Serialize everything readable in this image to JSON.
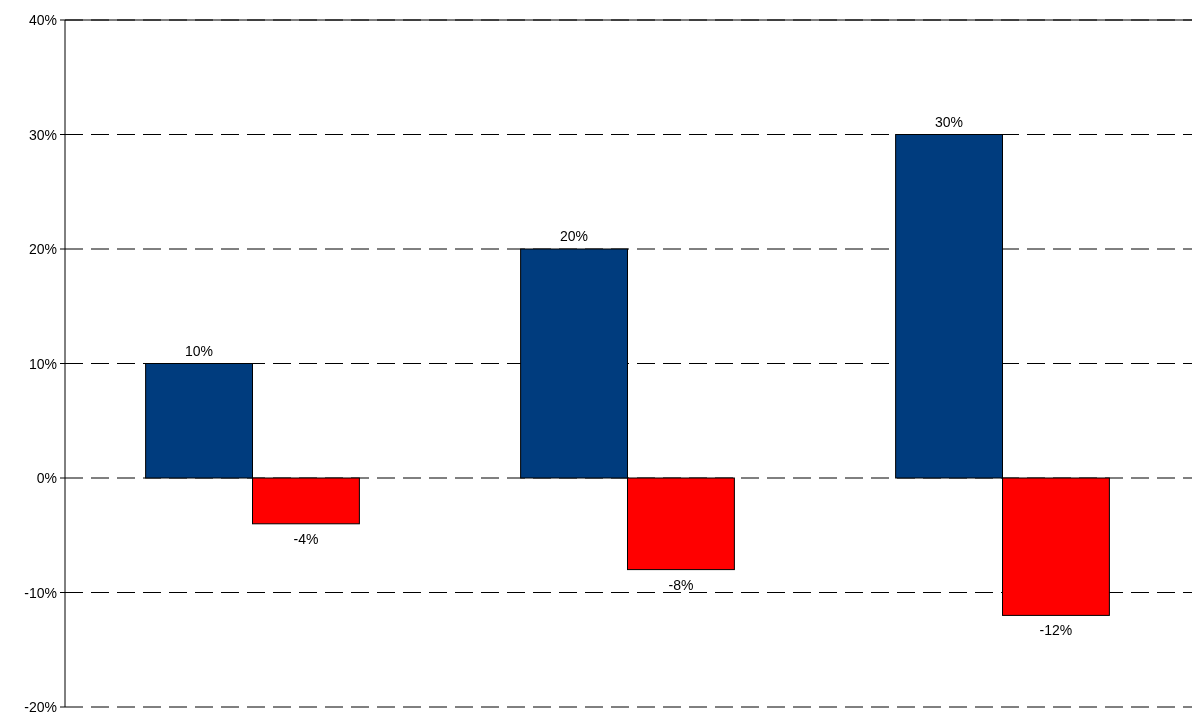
{
  "chart_data": {
    "type": "bar",
    "categories": [
      null,
      null,
      null
    ],
    "series": [
      {
        "color": "#003c7e",
        "values": [
          10,
          20,
          30
        ],
        "value_labels": [
          "10%",
          "20%",
          "30%"
        ]
      },
      {
        "color": "#ff0000",
        "values": [
          -4,
          -8,
          -12
        ],
        "value_labels": [
          "-4%",
          "-8%",
          "-12%"
        ]
      }
    ],
    "ylim": [
      -20,
      40
    ],
    "yticks": [
      {
        "value": -20,
        "label": "-20%"
      },
      {
        "value": -10,
        "label": "-10%"
      },
      {
        "value": 0,
        "label": "0%"
      },
      {
        "value": 10,
        "label": "10%"
      },
      {
        "value": 20,
        "label": "20%"
      },
      {
        "value": 30,
        "label": "30%"
      },
      {
        "value": 40,
        "label": "40%"
      }
    ],
    "grid": "y",
    "line_style": "dashed",
    "tick_labels": "y"
  }
}
